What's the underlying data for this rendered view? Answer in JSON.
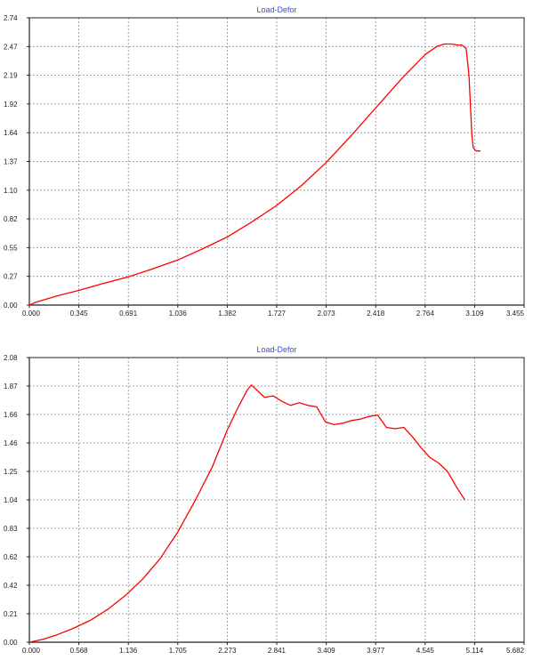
{
  "colors": {
    "series": "#ff0000",
    "title": "#3a4fd0",
    "grid": "#8c8c8c"
  },
  "chart_data": [
    {
      "type": "line",
      "title": "Load-Defor",
      "xlim": [
        0,
        3.455
      ],
      "ylim": [
        0,
        2.74
      ],
      "grid": true,
      "xticks": [
        "0.000",
        "0.345",
        "0.691",
        "1.036",
        "1.382",
        "1.727",
        "2.073",
        "2.418",
        "2.764",
        "3.109",
        "3.455"
      ],
      "yticks": [
        "0.00",
        "0.27",
        "0.55",
        "0.82",
        "1.10",
        "1.37",
        "1.64",
        "1.92",
        "2.19",
        "2.47",
        "2.74"
      ],
      "series": [
        {
          "x": [
            0.0,
            0.05,
            0.1,
            0.2,
            0.345,
            0.5,
            0.691,
            0.85,
            1.036,
            1.2,
            1.382,
            1.55,
            1.727,
            1.9,
            2.073,
            2.25,
            2.418,
            2.6,
            2.764,
            2.85,
            2.9,
            2.95,
            2.99,
            3.02,
            3.05,
            3.07,
            3.08,
            3.09,
            3.1,
            3.12,
            3.15
          ],
          "y": [
            0.0,
            0.03,
            0.05,
            0.09,
            0.14,
            0.2,
            0.27,
            0.34,
            0.43,
            0.53,
            0.65,
            0.79,
            0.95,
            1.14,
            1.36,
            1.62,
            1.88,
            2.16,
            2.39,
            2.47,
            2.49,
            2.49,
            2.48,
            2.48,
            2.45,
            2.2,
            1.9,
            1.62,
            1.5,
            1.47,
            1.47
          ]
        }
      ]
    },
    {
      "type": "line",
      "title": "Load-Defor",
      "xlim": [
        0,
        5.682
      ],
      "ylim": [
        0,
        2.08
      ],
      "grid": true,
      "xticks": [
        "0.000",
        "0.568",
        "1.136",
        "1.705",
        "2.273",
        "2.841",
        "3.409",
        "3.977",
        "4.545",
        "5.114",
        "5.682"
      ],
      "yticks": [
        "0.00",
        "0.21",
        "0.42",
        "0.62",
        "0.83",
        "1.04",
        "1.25",
        "1.46",
        "1.66",
        "1.87",
        "2.08"
      ],
      "series": [
        {
          "x": [
            0.0,
            0.15,
            0.3,
            0.5,
            0.7,
            0.9,
            1.1,
            1.3,
            1.5,
            1.7,
            1.9,
            2.1,
            2.273,
            2.4,
            2.5,
            2.55,
            2.6,
            2.7,
            2.8,
            2.9,
            3.0,
            3.1,
            3.2,
            3.3,
            3.4,
            3.5,
            3.6,
            3.7,
            3.8,
            3.9,
            4.0,
            4.1,
            4.2,
            4.3,
            4.4,
            4.5,
            4.6,
            4.7,
            4.8,
            4.9,
            5.0
          ],
          "y": [
            0.0,
            0.02,
            0.05,
            0.1,
            0.16,
            0.24,
            0.34,
            0.46,
            0.61,
            0.8,
            1.03,
            1.28,
            1.55,
            1.72,
            1.84,
            1.88,
            1.85,
            1.79,
            1.8,
            1.76,
            1.73,
            1.75,
            1.73,
            1.72,
            1.61,
            1.59,
            1.6,
            1.62,
            1.63,
            1.65,
            1.66,
            1.57,
            1.56,
            1.57,
            1.5,
            1.42,
            1.35,
            1.31,
            1.25,
            1.14,
            1.04
          ]
        }
      ]
    }
  ]
}
